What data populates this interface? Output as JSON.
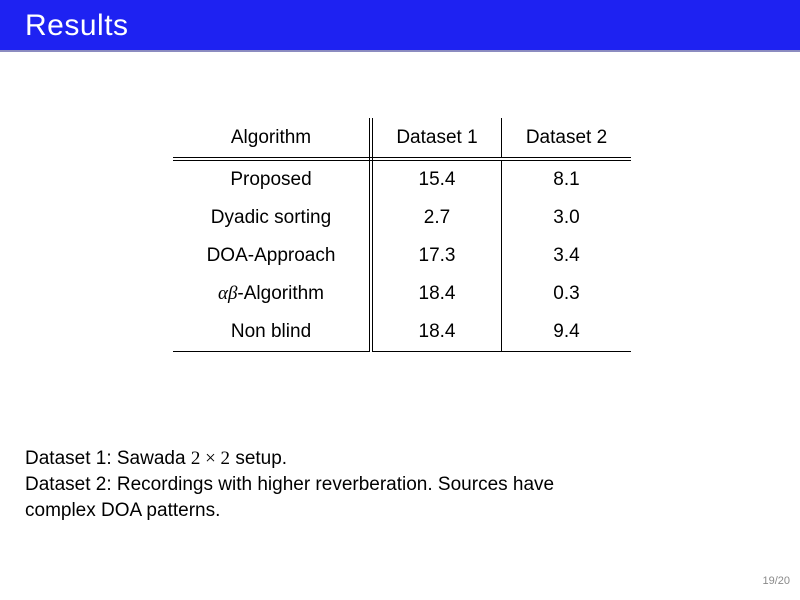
{
  "header": {
    "title": "Results"
  },
  "chart_data": {
    "type": "table",
    "columns": [
      "Algorithm",
      "Dataset 1",
      "Dataset 2"
    ],
    "rows": [
      [
        "Proposed",
        15.4,
        8.1
      ],
      [
        "Dyadic sorting",
        2.7,
        3.0
      ],
      [
        "DOA-Approach",
        17.3,
        3.4
      ],
      [
        "αβ-Algorithm",
        18.4,
        0.3
      ],
      [
        "Non blind",
        18.4,
        9.4
      ]
    ],
    "title": "Results",
    "legend_position": "none"
  },
  "table": {
    "headers": [
      "Algorithm",
      "Dataset 1",
      "Dataset 2"
    ],
    "rows": [
      {
        "algorithm": "Proposed",
        "d1": "15.4",
        "d2": "8.1"
      },
      {
        "algorithm": "Dyadic sorting",
        "d1": "2.7",
        "d2": "3.0"
      },
      {
        "algorithm": "DOA-Approach",
        "d1": "17.3",
        "d2": "3.4"
      },
      {
        "algorithm_math": "αβ",
        "algorithm": "-Algorithm",
        "d1": "18.4",
        "d2": "0.3"
      },
      {
        "algorithm": "Non blind",
        "d1": "18.4",
        "d2": "9.4"
      }
    ]
  },
  "notes": {
    "line1_prefix": "Dataset 1: Sawada ",
    "line1_math": "2 × 2",
    "line1_suffix": " setup.",
    "line2": "Dataset 2: Recordings with higher reverberation. Sources have",
    "line3": "complex DOA patterns."
  },
  "footer": {
    "page_indicator": "19/20"
  },
  "colors": {
    "banner_blue": "#1e22f2",
    "banner_border": "#8c8cc0",
    "page_number_gray": "#8a8a8a",
    "text_black": "#000000",
    "background_white": "#ffffff"
  }
}
